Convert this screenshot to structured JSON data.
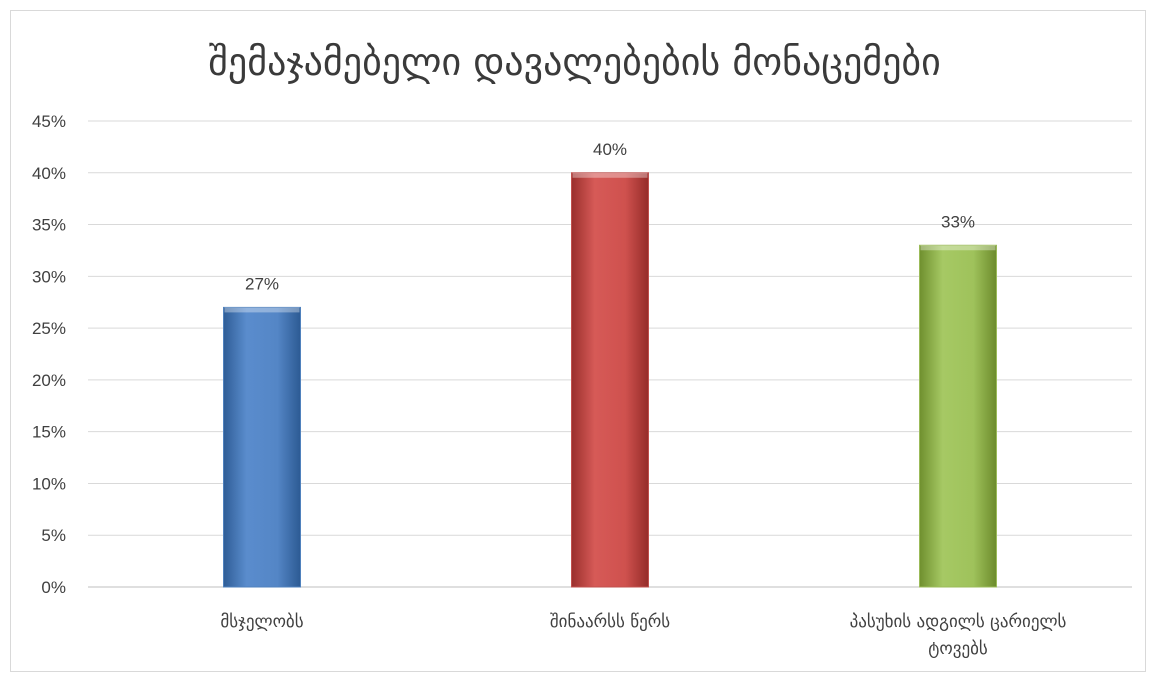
{
  "chart_data": {
    "type": "bar",
    "title": "შემაჯამებელი დავალებების მონაცემები",
    "categories": [
      "მსჯელობს",
      "შინაარსს წერს",
      "პასუხის ადგილს ცარიელს ტოვებს"
    ],
    "category_lines": [
      [
        "მსჯელობს"
      ],
      [
        "შინაარსს წერს"
      ],
      [
        "პასუხის ადგილს ცარიელს",
        "ტოვებს"
      ]
    ],
    "values": [
      27,
      40,
      33
    ],
    "data_labels": [
      "27%",
      "40%",
      "33%"
    ],
    "y_ticks": [
      "0%",
      "5%",
      "10%",
      "15%",
      "20%",
      "25%",
      "30%",
      "35%",
      "40%",
      "45%"
    ],
    "ylim": [
      0,
      45
    ],
    "y_tick_step": 5,
    "grid": true,
    "legend": "none",
    "colors": [
      "#4f81bd",
      "#c0504d",
      "#9bbb59"
    ],
    "xlabel": "",
    "ylabel": ""
  }
}
